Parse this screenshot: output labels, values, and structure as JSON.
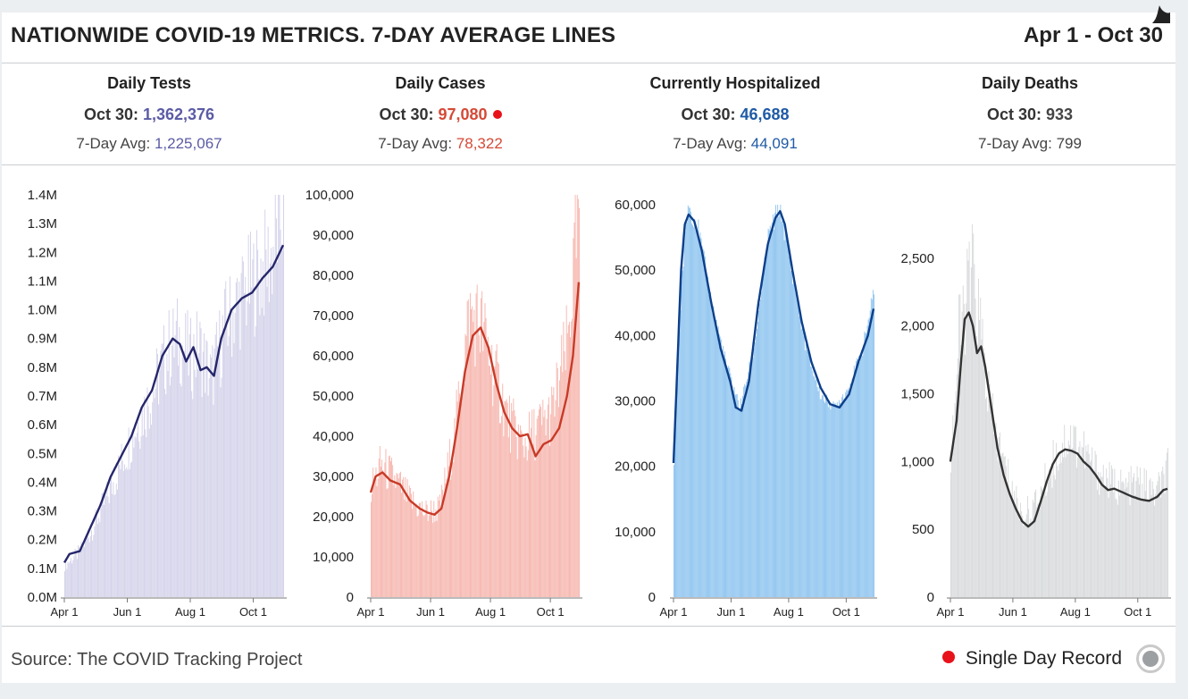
{
  "title": "NATIONWIDE COVID-19 METRICS. 7-DAY AVERAGE LINES",
  "date_range": "Apr 1 - Oct 30",
  "metrics": [
    {
      "label": "Daily Tests",
      "today_prefix": "Oct 30: ",
      "today_value": "1,362,376",
      "avg_prefix": "7-Day Avg: ",
      "avg_value": "1,225,067",
      "color": "#5b5ba6",
      "record": false
    },
    {
      "label": "Daily Cases",
      "today_prefix": "Oct 30: ",
      "today_value": "97,080",
      "avg_prefix": "7-Day Avg: ",
      "avg_value": "78,322",
      "color": "#d44a36",
      "record": true
    },
    {
      "label": "Currently Hospitalized",
      "today_prefix": "Oct 30: ",
      "today_value": "46,688",
      "avg_prefix": "7-Day Avg: ",
      "avg_value": "44,091",
      "color": "#1f5aa6",
      "record": false
    },
    {
      "label": "Daily Deaths",
      "today_prefix": "Oct 30: ",
      "today_value": "933",
      "avg_prefix": "7-Day Avg: ",
      "avg_value": "799",
      "color": "#444444",
      "record": false
    }
  ],
  "footer": {
    "source": "Source: The COVID Tracking Project",
    "legend_label": "Single Day Record",
    "record_color": "#e8121b"
  },
  "chart_data": [
    {
      "type": "bar",
      "title": "Daily Tests",
      "bar_color": "#d4d3ea",
      "line_color": "#25266b",
      "ylim": [
        0,
        1400000
      ],
      "yticks": [
        0,
        100000,
        200000,
        300000,
        400000,
        500000,
        600000,
        700000,
        800000,
        900000,
        1000000,
        1100000,
        1200000,
        1300000,
        1400000
      ],
      "ytick_labels": [
        "0.0M",
        "0.1M",
        "0.2M",
        "0.3M",
        "0.4M",
        "0.5M",
        "0.6M",
        "0.7M",
        "0.8M",
        "0.9M",
        "1.0M",
        "1.1M",
        "1.2M",
        "1.3M",
        "1.4M"
      ],
      "xtick_labels": [
        "Apr 1",
        "Jun 1",
        "Aug 1",
        "Oct 1"
      ],
      "xtick_days": [
        0,
        61,
        122,
        183
      ],
      "days": 213,
      "bar_keypoints": [
        [
          0,
          110000
        ],
        [
          15,
          160000
        ],
        [
          30,
          260000
        ],
        [
          45,
          380000
        ],
        [
          55,
          470000
        ],
        [
          70,
          600000
        ],
        [
          85,
          710000
        ],
        [
          100,
          860000
        ],
        [
          110,
          900000
        ],
        [
          122,
          830000
        ],
        [
          130,
          870000
        ],
        [
          142,
          760000
        ],
        [
          155,
          940000
        ],
        [
          170,
          1040000
        ],
        [
          185,
          1110000
        ],
        [
          200,
          1180000
        ],
        [
          212,
          1360000
        ]
      ],
      "avg_keypoints": [
        [
          0,
          120000
        ],
        [
          5,
          150000
        ],
        [
          15,
          160000
        ],
        [
          25,
          240000
        ],
        [
          35,
          320000
        ],
        [
          45,
          420000
        ],
        [
          55,
          490000
        ],
        [
          65,
          560000
        ],
        [
          75,
          660000
        ],
        [
          85,
          720000
        ],
        [
          95,
          840000
        ],
        [
          105,
          900000
        ],
        [
          112,
          880000
        ],
        [
          118,
          820000
        ],
        [
          125,
          870000
        ],
        [
          132,
          790000
        ],
        [
          138,
          800000
        ],
        [
          145,
          770000
        ],
        [
          152,
          900000
        ],
        [
          162,
          1000000
        ],
        [
          172,
          1040000
        ],
        [
          182,
          1060000
        ],
        [
          192,
          1110000
        ],
        [
          202,
          1150000
        ],
        [
          212,
          1225067
        ]
      ]
    },
    {
      "type": "bar",
      "title": "Daily Cases",
      "bar_color": "#f6b6ae",
      "line_color": "#c83a27",
      "ylim": [
        0,
        100000
      ],
      "yticks": [
        0,
        10000,
        20000,
        30000,
        40000,
        50000,
        60000,
        70000,
        80000,
        90000,
        100000
      ],
      "ytick_labels": [
        "0",
        "10,000",
        "20,000",
        "30,000",
        "40,000",
        "50,000",
        "60,000",
        "70,000",
        "80,000",
        "90,000",
        "100,000"
      ],
      "xtick_labels": [
        "Apr 1",
        "Jun 1",
        "Aug 1",
        "Oct 1"
      ],
      "xtick_days": [
        0,
        61,
        122,
        183
      ],
      "days": 213,
      "bar_keypoints": [
        [
          0,
          27000
        ],
        [
          10,
          33000
        ],
        [
          25,
          29000
        ],
        [
          40,
          24000
        ],
        [
          55,
          21000
        ],
        [
          70,
          22000
        ],
        [
          85,
          40000
        ],
        [
          100,
          70000
        ],
        [
          112,
          68000
        ],
        [
          125,
          56000
        ],
        [
          140,
          44000
        ],
        [
          155,
          38000
        ],
        [
          170,
          42000
        ],
        [
          185,
          46000
        ],
        [
          200,
          63000
        ],
        [
          212,
          97080
        ]
      ],
      "avg_keypoints": [
        [
          0,
          26000
        ],
        [
          5,
          30000
        ],
        [
          12,
          31000
        ],
        [
          20,
          29000
        ],
        [
          30,
          28000
        ],
        [
          40,
          24000
        ],
        [
          50,
          22000
        ],
        [
          58,
          21000
        ],
        [
          65,
          20500
        ],
        [
          72,
          22000
        ],
        [
          80,
          30000
        ],
        [
          88,
          42000
        ],
        [
          96,
          56000
        ],
        [
          104,
          65000
        ],
        [
          112,
          67000
        ],
        [
          120,
          62000
        ],
        [
          128,
          53000
        ],
        [
          136,
          46000
        ],
        [
          144,
          42000
        ],
        [
          152,
          40000
        ],
        [
          160,
          40500
        ],
        [
          168,
          35000
        ],
        [
          176,
          38000
        ],
        [
          184,
          39000
        ],
        [
          192,
          42000
        ],
        [
          200,
          50000
        ],
        [
          206,
          60000
        ],
        [
          212,
          78322
        ]
      ]
    },
    {
      "type": "area",
      "title": "Currently Hospitalized",
      "bar_color": "#8cc3ef",
      "line_color": "#0d3f8a",
      "ylim": [
        0,
        60000
      ],
      "yticks": [
        0,
        10000,
        20000,
        30000,
        40000,
        50000,
        60000
      ],
      "ytick_labels": [
        "0",
        "10,000",
        "20,000",
        "30,000",
        "40,000",
        "50,000",
        "60,000"
      ],
      "xtick_labels": [
        "Apr 1",
        "Jun 1",
        "Aug 1",
        "Oct 1"
      ],
      "xtick_days": [
        0,
        61,
        122,
        183
      ],
      "days": 213,
      "bar_keypoints": [
        [
          0,
          20000
        ],
        [
          8,
          48000
        ],
        [
          15,
          60000
        ],
        [
          25,
          57000
        ],
        [
          40,
          45000
        ],
        [
          55,
          36000
        ],
        [
          70,
          29000
        ],
        [
          85,
          38000
        ],
        [
          100,
          55000
        ],
        [
          112,
          60000
        ],
        [
          125,
          50000
        ],
        [
          140,
          38000
        ],
        [
          155,
          31000
        ],
        [
          170,
          29000
        ],
        [
          185,
          32000
        ],
        [
          200,
          38000
        ],
        [
          212,
          46688
        ]
      ],
      "avg_keypoints": [
        [
          0,
          20500
        ],
        [
          4,
          35000
        ],
        [
          8,
          50000
        ],
        [
          12,
          57000
        ],
        [
          16,
          58500
        ],
        [
          22,
          57500
        ],
        [
          30,
          53000
        ],
        [
          40,
          45000
        ],
        [
          50,
          38000
        ],
        [
          60,
          33000
        ],
        [
          66,
          29000
        ],
        [
          72,
          28500
        ],
        [
          80,
          33000
        ],
        [
          90,
          45000
        ],
        [
          100,
          54000
        ],
        [
          108,
          58000
        ],
        [
          113,
          59000
        ],
        [
          118,
          57000
        ],
        [
          126,
          50000
        ],
        [
          136,
          42000
        ],
        [
          146,
          36000
        ],
        [
          156,
          32000
        ],
        [
          166,
          29500
        ],
        [
          176,
          29000
        ],
        [
          186,
          31000
        ],
        [
          196,
          36000
        ],
        [
          206,
          40000
        ],
        [
          212,
          44091
        ]
      ]
    },
    {
      "type": "bar",
      "title": "Daily Deaths",
      "bar_color": "#d8dadc",
      "line_color": "#333333",
      "ylim": [
        0,
        2750
      ],
      "yticks": [
        0,
        500,
        1000,
        1500,
        2000,
        2500
      ],
      "ytick_labels": [
        "0",
        "500",
        "1,000",
        "1,500",
        "2,000",
        "2,500"
      ],
      "xtick_labels": [
        "Apr 1",
        "Jun 1",
        "Aug 1",
        "Oct 1"
      ],
      "xtick_days": [
        0,
        61,
        122,
        183
      ],
      "days": 213,
      "bar_keypoints": [
        [
          0,
          1000
        ],
        [
          8,
          1900
        ],
        [
          15,
          2200
        ],
        [
          22,
          2400
        ],
        [
          30,
          1900
        ],
        [
          40,
          1300
        ],
        [
          55,
          900
        ],
        [
          70,
          600
        ],
        [
          85,
          700
        ],
        [
          100,
          1000
        ],
        [
          115,
          1200
        ],
        [
          128,
          1100
        ],
        [
          140,
          950
        ],
        [
          155,
          850
        ],
        [
          170,
          800
        ],
        [
          185,
          850
        ],
        [
          200,
          750
        ],
        [
          212,
          933
        ]
      ],
      "avg_keypoints": [
        [
          0,
          1000
        ],
        [
          6,
          1300
        ],
        [
          10,
          1700
        ],
        [
          14,
          2050
        ],
        [
          18,
          2100
        ],
        [
          22,
          2000
        ],
        [
          26,
          1800
        ],
        [
          30,
          1850
        ],
        [
          34,
          1700
        ],
        [
          40,
          1400
        ],
        [
          46,
          1100
        ],
        [
          52,
          900
        ],
        [
          58,
          760
        ],
        [
          64,
          650
        ],
        [
          70,
          560
        ],
        [
          76,
          520
        ],
        [
          82,
          560
        ],
        [
          88,
          700
        ],
        [
          94,
          850
        ],
        [
          100,
          980
        ],
        [
          106,
          1060
        ],
        [
          112,
          1090
        ],
        [
          118,
          1080
        ],
        [
          124,
          1060
        ],
        [
          130,
          1000
        ],
        [
          136,
          960
        ],
        [
          142,
          900
        ],
        [
          148,
          830
        ],
        [
          154,
          790
        ],
        [
          160,
          800
        ],
        [
          166,
          780
        ],
        [
          172,
          760
        ],
        [
          178,
          740
        ],
        [
          186,
          720
        ],
        [
          194,
          710
        ],
        [
          202,
          740
        ],
        [
          208,
          790
        ],
        [
          212,
          799
        ]
      ]
    }
  ]
}
